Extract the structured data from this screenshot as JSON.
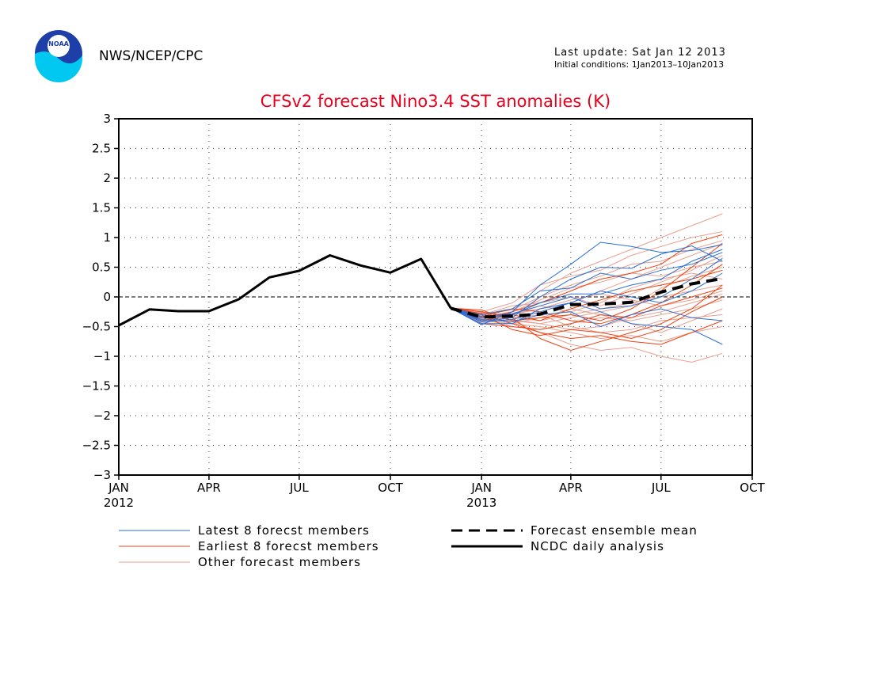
{
  "header": {
    "agency": "NWS/NCEP/CPC",
    "logo_text": "NOAA",
    "last_update": "Last update: Sat Jan 12 2013",
    "initial_conditions": "Initial conditions: 1Jan2013–10Jan2013"
  },
  "colors": {
    "title": "#e8001c",
    "latest": "#2a6fd6",
    "earliest": "#f04010",
    "other": "#e8a090",
    "mean": "#000000",
    "observed": "#000000",
    "logo_blue": "#1e3ea8",
    "logo_cyan": "#00c8f0"
  },
  "chart_data": {
    "type": "line",
    "title": "CFSv2 forecast Nino3.4 SST anomalies (K)",
    "xlabel": "",
    "ylabel": "",
    "xlim": [
      "2012-01-01",
      "2013-10-01"
    ],
    "ylim": [
      -3,
      3
    ],
    "y_ticks": [
      3,
      2.5,
      2,
      1.5,
      1,
      0.5,
      0,
      -0.5,
      -1,
      -1.5,
      -2,
      -2.5,
      -3
    ],
    "y_tick_labels": [
      "3",
      "2.5",
      "2",
      "1.5",
      "1",
      "0.5",
      "0",
      "−0.5",
      "−1",
      "−1.5",
      "−2",
      "−2.5",
      "−3"
    ],
    "x_ticks": [
      {
        "date": "2012-01-01",
        "label": "JAN",
        "year": "2012"
      },
      {
        "date": "2012-04-01",
        "label": "APR",
        "year": ""
      },
      {
        "date": "2012-07-01",
        "label": "JUL",
        "year": ""
      },
      {
        "date": "2012-10-01",
        "label": "OCT",
        "year": ""
      },
      {
        "date": "2013-01-01",
        "label": "JAN",
        "year": "2013"
      },
      {
        "date": "2013-04-01",
        "label": "APR",
        "year": ""
      },
      {
        "date": "2013-07-01",
        "label": "JUL",
        "year": ""
      },
      {
        "date": "2013-10-01",
        "label": "OCT",
        "year": ""
      }
    ],
    "grid": true,
    "zero_line": true,
    "legend_position": "bottom",
    "legend": [
      {
        "label": "Latest 8 forecst members",
        "key": "latest",
        "style": "thin"
      },
      {
        "label": "Earliest 8 forecst members",
        "key": "earliest",
        "style": "thin"
      },
      {
        "label": "Other forecast members",
        "key": "other",
        "style": "thin"
      },
      {
        "label": "Forecast ensemble mean",
        "key": "mean",
        "style": "dashed"
      },
      {
        "label": "NCDC daily analysis",
        "key": "observed",
        "style": "thick"
      }
    ],
    "observed": {
      "name": "NCDC daily analysis",
      "x": [
        "2012-01-01",
        "2012-02-01",
        "2012-03-01",
        "2012-04-01",
        "2012-05-01",
        "2012-06-01",
        "2012-07-01",
        "2012-08-01",
        "2012-09-01",
        "2012-10-01",
        "2012-11-01",
        "2012-12-01"
      ],
      "y": [
        -0.48,
        -0.21,
        -0.24,
        -0.24,
        -0.04,
        0.33,
        0.44,
        0.7,
        0.53,
        0.41,
        0.64,
        -0.19
      ]
    },
    "ensemble_mean": {
      "name": "Forecast ensemble mean",
      "x": [
        "2012-12-01",
        "2013-01-01",
        "2013-02-01",
        "2013-03-01",
        "2013-04-01",
        "2013-05-01",
        "2013-06-01",
        "2013-07-01",
        "2013-08-01",
        "2013-09-01"
      ],
      "y": [
        -0.19,
        -0.34,
        -0.32,
        -0.29,
        -0.13,
        -0.12,
        -0.09,
        0.08,
        0.22,
        0.31
      ]
    },
    "members_x": [
      "2012-12-01",
      "2013-01-01",
      "2013-02-01",
      "2013-03-01",
      "2013-04-01",
      "2013-05-01",
      "2013-06-01",
      "2013-07-01",
      "2013-08-01",
      "2013-09-01"
    ],
    "members": {
      "latest": [
        [
          -0.19,
          -0.47,
          -0.25,
          0.2,
          0.55,
          0.92,
          0.85,
          0.75,
          0.78,
          0.88
        ],
        [
          -0.19,
          -0.4,
          -0.35,
          0.0,
          0.3,
          0.5,
          0.48,
          0.72,
          0.86,
          0.6
        ],
        [
          -0.19,
          -0.45,
          -0.45,
          -0.2,
          -0.1,
          -0.25,
          -0.45,
          -0.5,
          -0.55,
          -0.8
        ],
        [
          -0.19,
          -0.3,
          -0.2,
          0.1,
          0.15,
          0.4,
          0.3,
          0.45,
          0.55,
          0.75
        ],
        [
          -0.19,
          -0.38,
          -0.42,
          -0.3,
          -0.25,
          -0.5,
          -0.3,
          -0.2,
          -0.35,
          -0.4
        ],
        [
          -0.19,
          -0.35,
          -0.3,
          -0.1,
          0.05,
          0.05,
          0.2,
          0.3,
          0.6,
          0.8
        ],
        [
          -0.19,
          -0.42,
          -0.38,
          -0.25,
          -0.1,
          0.1,
          0.0,
          -0.1,
          0.1,
          0.4
        ],
        [
          -0.19,
          -0.33,
          -0.28,
          -0.15,
          0.0,
          -0.2,
          -0.15,
          0.0,
          0.3,
          0.65
        ]
      ],
      "earliest": [
        [
          -0.19,
          -0.28,
          -0.45,
          -0.6,
          -0.7,
          -0.65,
          -0.75,
          -0.8,
          -0.6,
          -0.4
        ],
        [
          -0.19,
          -0.25,
          -0.35,
          -0.7,
          -0.9,
          -0.75,
          -0.6,
          -0.45,
          -0.2,
          0.2
        ],
        [
          -0.19,
          -0.3,
          -0.55,
          -0.65,
          -0.55,
          -0.6,
          -0.7,
          -0.55,
          -0.25,
          0.0
        ],
        [
          -0.19,
          -0.35,
          -0.25,
          -0.1,
          0.1,
          0.3,
          0.4,
          0.55,
          0.9,
          1.05
        ],
        [
          -0.19,
          -0.4,
          -0.3,
          -0.4,
          -0.2,
          -0.05,
          0.1,
          0.2,
          0.3,
          0.45
        ],
        [
          -0.19,
          -0.22,
          -0.4,
          -0.35,
          -0.3,
          -0.4,
          -0.2,
          0.1,
          0.5,
          0.9
        ],
        [
          -0.19,
          -0.45,
          -0.5,
          -0.55,
          -0.45,
          -0.3,
          -0.35,
          -0.15,
          0.0,
          0.15
        ],
        [
          -0.19,
          -0.33,
          -0.2,
          -0.25,
          -0.4,
          -0.45,
          -0.3,
          -0.1,
          0.2,
          0.55
        ]
      ],
      "other": [
        [
          -0.19,
          -0.3,
          -0.2,
          0.1,
          0.4,
          0.6,
          0.8,
          1.0,
          1.2,
          1.4
        ],
        [
          -0.19,
          -0.35,
          -0.4,
          -0.6,
          -0.8,
          -0.9,
          -0.85,
          -1.0,
          -1.1,
          -0.95
        ],
        [
          -0.19,
          -0.25,
          -0.1,
          0.2,
          0.35,
          0.45,
          0.7,
          0.85,
          1.0,
          1.1
        ],
        [
          -0.19,
          -0.4,
          -0.45,
          -0.5,
          -0.6,
          -0.7,
          -0.65,
          -0.75,
          -0.6,
          -0.5
        ],
        [
          -0.19,
          -0.28,
          -0.3,
          -0.2,
          -0.1,
          0.1,
          0.3,
          0.5,
          0.7,
          0.9
        ],
        [
          -0.19,
          -0.32,
          -0.35,
          -0.4,
          -0.3,
          -0.2,
          -0.1,
          0.0,
          0.1,
          0.2
        ],
        [
          -0.19,
          -0.38,
          -0.25,
          -0.05,
          0.15,
          0.25,
          0.4,
          0.35,
          0.5,
          0.6
        ],
        [
          -0.19,
          -0.36,
          -0.5,
          -0.55,
          -0.45,
          -0.35,
          -0.4,
          -0.3,
          -0.2,
          -0.05
        ],
        [
          -0.19,
          -0.3,
          -0.15,
          -0.1,
          0.0,
          -0.15,
          0.05,
          0.25,
          0.45,
          0.7
        ],
        [
          -0.19,
          -0.42,
          -0.35,
          -0.3,
          -0.5,
          -0.6,
          -0.55,
          -0.4,
          -0.35,
          -0.3
        ],
        [
          -0.19,
          -0.26,
          -0.4,
          -0.45,
          -0.35,
          -0.25,
          -0.15,
          0.15,
          0.35,
          0.5
        ],
        [
          -0.19,
          -0.34,
          -0.28,
          -0.2,
          -0.05,
          0.05,
          -0.05,
          -0.15,
          -0.05,
          0.1
        ],
        [
          -0.19,
          -0.31,
          -0.45,
          -0.35,
          -0.2,
          -0.3,
          -0.45,
          -0.6,
          -0.4,
          -0.2
        ],
        [
          -0.19,
          -0.29,
          -0.22,
          0.0,
          0.2,
          0.35,
          0.55,
          0.6,
          0.8,
          0.95
        ],
        [
          -0.19,
          -0.44,
          -0.38,
          -0.45,
          -0.55,
          -0.5,
          -0.35,
          -0.25,
          -0.1,
          0.05
        ],
        [
          -0.19,
          -0.37,
          -0.3,
          -0.15,
          -0.25,
          -0.1,
          0.15,
          0.3,
          0.4,
          0.3
        ]
      ]
    }
  }
}
